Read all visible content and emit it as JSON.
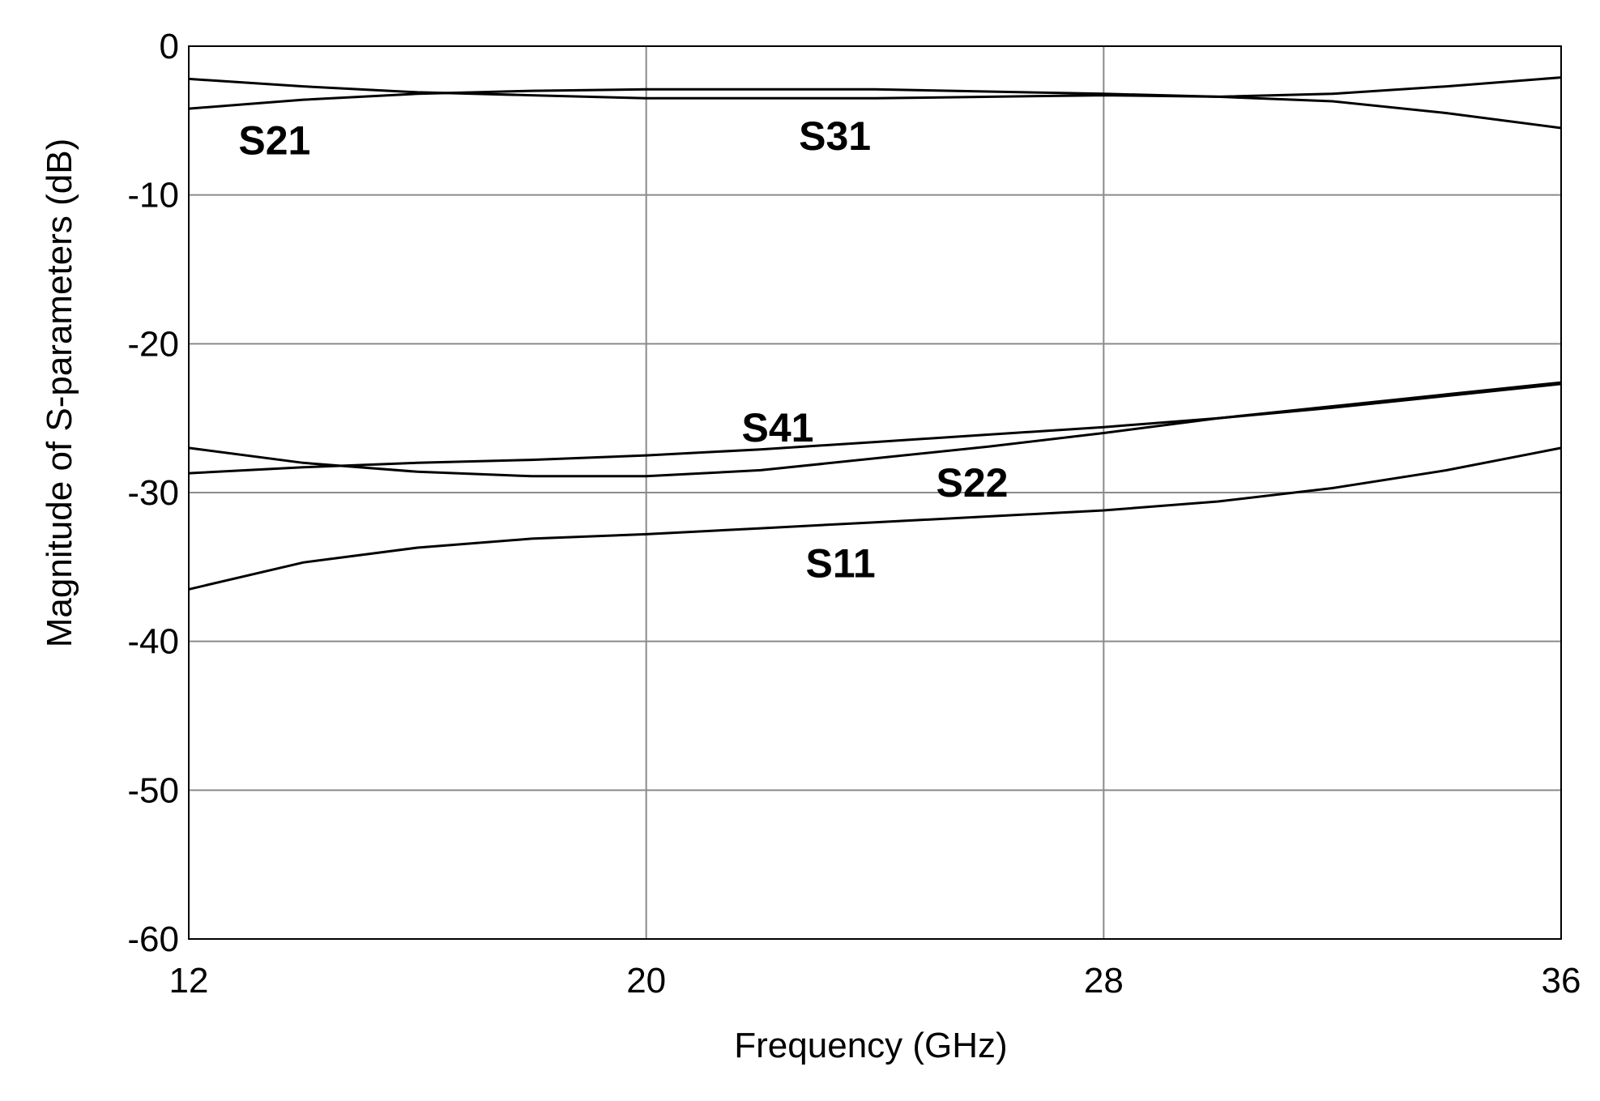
{
  "chart_data": {
    "type": "line",
    "xlabel": "Frequency (GHz)",
    "ylabel": "Magnitude of S-parameters (dB)",
    "xlim": [
      12,
      36
    ],
    "ylim": [
      -60,
      0
    ],
    "x_ticks": [
      "12",
      "20",
      "28",
      "36"
    ],
    "y_ticks": [
      "0",
      "-10",
      "-20",
      "-30",
      "-40",
      "-50",
      "-60"
    ],
    "grid": true,
    "series": [
      {
        "name": "S21",
        "x": [
          12,
          14,
          16,
          18,
          20,
          24,
          28,
          30,
          32,
          34,
          36
        ],
        "y": [
          -2.2,
          -2.7,
          -3.1,
          -3.3,
          -3.5,
          -3.5,
          -3.3,
          -3.4,
          -3.7,
          -4.5,
          -5.5
        ]
      },
      {
        "name": "S31",
        "x": [
          12,
          14,
          16,
          18,
          20,
          24,
          28,
          30,
          32,
          34,
          36
        ],
        "y": [
          -4.2,
          -3.6,
          -3.2,
          -3.0,
          -2.9,
          -2.9,
          -3.2,
          -3.4,
          -3.2,
          -2.7,
          -2.1
        ]
      },
      {
        "name": "S41",
        "x": [
          12,
          14,
          16,
          18,
          20,
          22,
          24,
          26,
          28,
          30,
          32,
          34,
          36
        ],
        "y": [
          -28.7,
          -28.3,
          -28.0,
          -27.8,
          -27.5,
          -27.1,
          -26.6,
          -26.1,
          -25.6,
          -25.0,
          -24.3,
          -23.5,
          -22.7
        ]
      },
      {
        "name": "S22",
        "x": [
          12,
          14,
          16,
          18,
          20,
          22,
          24,
          26,
          28,
          30,
          32,
          34,
          36
        ],
        "y": [
          -27.0,
          -28.0,
          -28.6,
          -28.9,
          -28.9,
          -28.5,
          -27.7,
          -26.9,
          -26.0,
          -25.0,
          -24.2,
          -23.4,
          -22.6
        ]
      },
      {
        "name": "S11",
        "x": [
          12,
          14,
          16,
          18,
          20,
          22,
          24,
          26,
          28,
          30,
          32,
          34,
          36
        ],
        "y": [
          -36.5,
          -34.7,
          -33.7,
          -33.1,
          -32.8,
          -32.4,
          -32.0,
          -31.6,
          -31.2,
          -30.6,
          -29.7,
          -28.5,
          -27.0
        ]
      }
    ],
    "annotations": [
      {
        "text": "S21",
        "x": 13.5,
        "y": -6.3
      },
      {
        "text": "S31",
        "x": 23.3,
        "y": -6.0
      },
      {
        "text": "S41",
        "x": 22.3,
        "y": -25.6
      },
      {
        "text": "S22",
        "x": 25.7,
        "y": -29.3
      },
      {
        "text": "S11",
        "x": 23.4,
        "y": -34.7
      }
    ]
  }
}
